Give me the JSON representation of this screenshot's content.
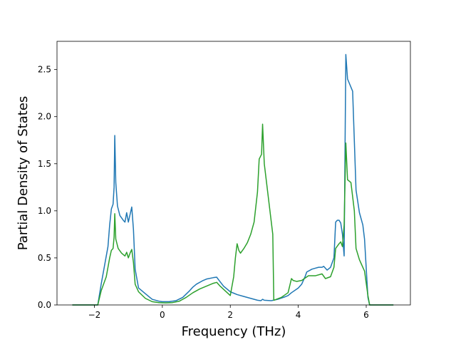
{
  "chart_data": {
    "type": "line",
    "xlabel": "Frequency (THz)",
    "ylabel": "Partial Density of States",
    "xlim": [
      -3.1,
      7.3
    ],
    "ylim": [
      0,
      2.8
    ],
    "xticks": [
      -2,
      0,
      2,
      4,
      6
    ],
    "yticks": [
      0.0,
      0.5,
      1.0,
      1.5,
      2.0,
      2.5
    ],
    "xtick_labels": [
      "−2",
      "0",
      "2",
      "4",
      "6"
    ],
    "ytick_labels": [
      "0.0",
      "0.5",
      "1.0",
      "1.5",
      "2.0",
      "2.5"
    ],
    "grid": false,
    "legend": "none",
    "series": [
      {
        "color": "#1f77b4",
        "points": [
          [
            -2.65,
            0
          ],
          [
            -1.9,
            0
          ],
          [
            -1.8,
            0.22
          ],
          [
            -1.7,
            0.42
          ],
          [
            -1.6,
            0.62
          ],
          [
            -1.55,
            0.85
          ],
          [
            -1.5,
            1.02
          ],
          [
            -1.45,
            1.07
          ],
          [
            -1.42,
            1.25
          ],
          [
            -1.4,
            1.8
          ],
          [
            -1.37,
            1.3
          ],
          [
            -1.32,
            1.05
          ],
          [
            -1.25,
            0.95
          ],
          [
            -1.15,
            0.9
          ],
          [
            -1.1,
            0.88
          ],
          [
            -1.05,
            0.98
          ],
          [
            -1.0,
            0.88
          ],
          [
            -0.95,
            0.96
          ],
          [
            -0.9,
            1.04
          ],
          [
            -0.85,
            0.8
          ],
          [
            -0.8,
            0.38
          ],
          [
            -0.7,
            0.18
          ],
          [
            -0.5,
            0.12
          ],
          [
            -0.3,
            0.06
          ],
          [
            -0.1,
            0.04
          ],
          [
            0.0,
            0.035
          ],
          [
            0.2,
            0.035
          ],
          [
            0.4,
            0.045
          ],
          [
            0.6,
            0.08
          ],
          [
            0.8,
            0.15
          ],
          [
            0.9,
            0.19
          ],
          [
            1.0,
            0.22
          ],
          [
            1.2,
            0.26
          ],
          [
            1.3,
            0.275
          ],
          [
            1.5,
            0.29
          ],
          [
            1.6,
            0.295
          ],
          [
            1.65,
            0.27
          ],
          [
            1.8,
            0.2
          ],
          [
            2.0,
            0.14
          ],
          [
            2.2,
            0.11
          ],
          [
            2.4,
            0.09
          ],
          [
            2.6,
            0.07
          ],
          [
            2.8,
            0.05
          ],
          [
            2.9,
            0.045
          ],
          [
            2.95,
            0.06
          ],
          [
            3.0,
            0.05
          ],
          [
            3.2,
            0.045
          ],
          [
            3.4,
            0.06
          ],
          [
            3.6,
            0.085
          ],
          [
            3.7,
            0.1
          ],
          [
            3.8,
            0.13
          ],
          [
            4.0,
            0.18
          ],
          [
            4.1,
            0.22
          ],
          [
            4.2,
            0.3
          ],
          [
            4.25,
            0.35
          ],
          [
            4.4,
            0.38
          ],
          [
            4.5,
            0.39
          ],
          [
            4.6,
            0.4
          ],
          [
            4.7,
            0.4
          ],
          [
            4.75,
            0.41
          ],
          [
            4.85,
            0.37
          ],
          [
            4.95,
            0.4
          ],
          [
            5.05,
            0.5
          ],
          [
            5.1,
            0.88
          ],
          [
            5.15,
            0.9
          ],
          [
            5.2,
            0.9
          ],
          [
            5.25,
            0.87
          ],
          [
            5.3,
            0.75
          ],
          [
            5.35,
            0.52
          ],
          [
            5.4,
            2.66
          ],
          [
            5.45,
            2.4
          ],
          [
            5.6,
            2.27
          ],
          [
            5.7,
            1.22
          ],
          [
            5.8,
            0.98
          ],
          [
            5.9,
            0.85
          ],
          [
            5.95,
            0.7
          ],
          [
            6.05,
            0.08
          ],
          [
            6.1,
            0
          ],
          [
            6.8,
            0
          ]
        ]
      },
      {
        "color": "#2ca02c",
        "points": [
          [
            -2.65,
            0
          ],
          [
            -1.9,
            0
          ],
          [
            -1.8,
            0.15
          ],
          [
            -1.65,
            0.3
          ],
          [
            -1.55,
            0.5
          ],
          [
            -1.5,
            0.58
          ],
          [
            -1.45,
            0.6
          ],
          [
            -1.42,
            0.72
          ],
          [
            -1.4,
            0.97
          ],
          [
            -1.37,
            0.7
          ],
          [
            -1.3,
            0.6
          ],
          [
            -1.2,
            0.55
          ],
          [
            -1.1,
            0.52
          ],
          [
            -1.05,
            0.56
          ],
          [
            -1.0,
            0.5
          ],
          [
            -0.95,
            0.55
          ],
          [
            -0.9,
            0.59
          ],
          [
            -0.85,
            0.45
          ],
          [
            -0.8,
            0.22
          ],
          [
            -0.7,
            0.14
          ],
          [
            -0.5,
            0.07
          ],
          [
            -0.3,
            0.035
          ],
          [
            -0.1,
            0.025
          ],
          [
            0.1,
            0.022
          ],
          [
            0.3,
            0.025
          ],
          [
            0.5,
            0.04
          ],
          [
            0.7,
            0.08
          ],
          [
            0.9,
            0.13
          ],
          [
            1.1,
            0.17
          ],
          [
            1.3,
            0.2
          ],
          [
            1.5,
            0.23
          ],
          [
            1.6,
            0.24
          ],
          [
            1.7,
            0.2
          ],
          [
            2.0,
            0.1
          ],
          [
            2.1,
            0.3
          ],
          [
            2.15,
            0.5
          ],
          [
            2.2,
            0.65
          ],
          [
            2.25,
            0.58
          ],
          [
            2.3,
            0.55
          ],
          [
            2.4,
            0.6
          ],
          [
            2.5,
            0.66
          ],
          [
            2.6,
            0.75
          ],
          [
            2.7,
            0.88
          ],
          [
            2.8,
            1.2
          ],
          [
            2.85,
            1.55
          ],
          [
            2.92,
            1.6
          ],
          [
            2.95,
            1.92
          ],
          [
            3.0,
            1.5
          ],
          [
            3.1,
            1.2
          ],
          [
            3.2,
            0.9
          ],
          [
            3.25,
            0.75
          ],
          [
            3.28,
            0.05
          ],
          [
            3.5,
            0.08
          ],
          [
            3.7,
            0.13
          ],
          [
            3.8,
            0.28
          ],
          [
            3.85,
            0.26
          ],
          [
            3.95,
            0.25
          ],
          [
            4.1,
            0.26
          ],
          [
            4.3,
            0.31
          ],
          [
            4.5,
            0.31
          ],
          [
            4.7,
            0.33
          ],
          [
            4.8,
            0.28
          ],
          [
            4.95,
            0.3
          ],
          [
            5.05,
            0.4
          ],
          [
            5.1,
            0.6
          ],
          [
            5.2,
            0.65
          ],
          [
            5.25,
            0.67
          ],
          [
            5.3,
            0.62
          ],
          [
            5.35,
            0.85
          ],
          [
            5.4,
            1.72
          ],
          [
            5.45,
            1.33
          ],
          [
            5.55,
            1.3
          ],
          [
            5.65,
            1.0
          ],
          [
            5.7,
            0.6
          ],
          [
            5.8,
            0.48
          ],
          [
            5.9,
            0.4
          ],
          [
            5.95,
            0.36
          ],
          [
            6.05,
            0.1
          ],
          [
            6.1,
            0
          ],
          [
            6.8,
            0
          ]
        ]
      }
    ]
  }
}
